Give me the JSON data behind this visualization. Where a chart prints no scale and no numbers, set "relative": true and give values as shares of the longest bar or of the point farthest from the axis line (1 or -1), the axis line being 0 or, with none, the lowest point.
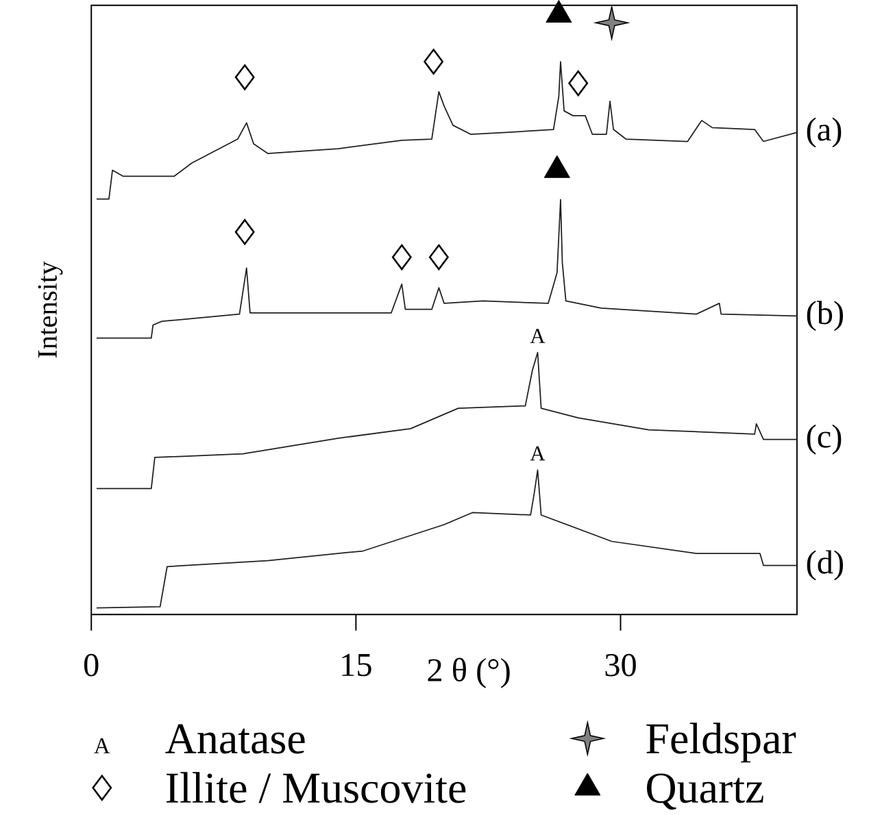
{
  "chart_data": {
    "type": "line",
    "relative": true,
    "xlabel": "2 θ (°)",
    "ylabel": "Intensity",
    "xlim": [
      0,
      40
    ],
    "xticks": [
      0,
      15,
      30
    ],
    "legend": "bottom",
    "annotations": [
      {
        "text": "A",
        "x": 25.3,
        "y": 0.437
      },
      {
        "text": "A",
        "x": 25.3,
        "y": 0.241
      },
      "Anatase"
    ],
    "series": [
      {
        "name": "(a)",
        "color": "#231f20",
        "x": [
          0.3,
          1.0,
          1.2,
          1.8,
          4.7,
          5.7,
          8.3,
          8.8,
          9.2,
          10.0,
          14.0,
          17.6,
          19.3,
          19.7,
          20.0,
          20.5,
          21.5,
          23.5,
          26.2,
          26.5,
          26.6,
          26.8,
          27.3,
          28.0,
          28.4,
          29.2,
          29.4,
          29.6,
          30.3,
          33.8,
          34.6,
          35.2,
          37.6,
          38.1,
          40.0
        ],
        "values": [
          0.693,
          0.693,
          0.741,
          0.731,
          0.731,
          0.753,
          0.793,
          0.82,
          0.785,
          0.769,
          0.777,
          0.791,
          0.793,
          0.872,
          0.848,
          0.816,
          0.801,
          0.804,
          0.809,
          0.864,
          0.922,
          0.84,
          0.832,
          0.832,
          0.801,
          0.801,
          0.856,
          0.809,
          0.793,
          0.789,
          0.824,
          0.812,
          0.809,
          0.789,
          0.804
        ]
      },
      {
        "name": "(b)",
        "color": "#231f20",
        "x": [
          0.3,
          3.4,
          3.5,
          4.0,
          8.4,
          8.8,
          9.0,
          17.0,
          17.6,
          17.8,
          19.3,
          19.7,
          20.0,
          22.2,
          25.9,
          26.4,
          26.6,
          26.7,
          26.9,
          28.9,
          34.3,
          35.6,
          35.7,
          40.0
        ],
        "values": [
          0.461,
          0.461,
          0.483,
          0.489,
          0.501,
          0.578,
          0.503,
          0.503,
          0.551,
          0.509,
          0.509,
          0.545,
          0.519,
          0.523,
          0.519,
          0.57,
          0.692,
          0.587,
          0.523,
          0.511,
          0.501,
          0.519,
          0.501,
          0.498
        ]
      },
      {
        "name": "(c)",
        "color": "#231f20",
        "x": [
          0.3,
          3.4,
          3.6,
          8.6,
          14.0,
          18.1,
          20.8,
          24.6,
          25.0,
          25.3,
          25.5,
          27.6,
          31.6,
          37.6,
          37.7,
          38.1,
          40.0
        ],
        "values": [
          0.21,
          0.21,
          0.262,
          0.268,
          0.294,
          0.31,
          0.344,
          0.348,
          0.407,
          0.437,
          0.344,
          0.328,
          0.308,
          0.301,
          0.318,
          0.292,
          0.292
        ]
      },
      {
        "name": "(d)",
        "color": "#231f20",
        "x": [
          0.3,
          3.9,
          4.3,
          10.0,
          15.4,
          20.0,
          21.6,
          24.9,
          25.1,
          25.3,
          25.5,
          29.5,
          34.3,
          37.9,
          38.1,
          40.0
        ],
        "values": [
          0.011,
          0.013,
          0.08,
          0.09,
          0.106,
          0.15,
          0.17,
          0.166,
          0.201,
          0.241,
          0.166,
          0.122,
          0.102,
          0.102,
          0.082,
          0.082
        ]
      },
      {
        "name": "Feldspar",
        "type": "scatter",
        "marker": "star",
        "color": "#808080",
        "x": [
          29.5
        ],
        "values": [
          0.987
        ]
      },
      {
        "name": "Illite / Muscovite",
        "type": "scatter",
        "marker": "diamond",
        "color": "#000000",
        "x": [
          8.7,
          19.4,
          27.6,
          8.7,
          17.6,
          19.7
        ],
        "values": [
          0.896,
          0.922,
          0.886,
          0.638,
          0.596,
          0.596
        ]
      },
      {
        "name": "Quartz",
        "type": "scatter",
        "marker": "triangle",
        "color": "#000000",
        "x": [
          26.5,
          26.4
        ],
        "values": [
          1.0,
          0.741
        ]
      }
    ]
  }
}
